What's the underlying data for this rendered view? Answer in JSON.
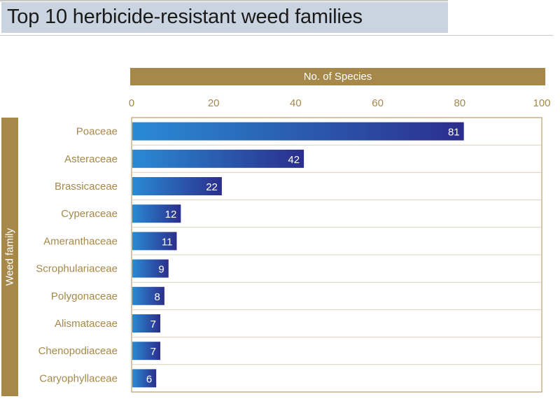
{
  "header": {
    "title": "Top 10 herbicide-resistant weed families"
  },
  "chart_data": {
    "type": "bar",
    "orientation": "horizontal",
    "title": "Top 10 herbicide-resistant weed families",
    "xlabel": "No. of Species",
    "ylabel": "Weed family",
    "xlim": [
      0,
      100
    ],
    "xticks": [
      0,
      20,
      40,
      60,
      80,
      100
    ],
    "categories": [
      "Poaceae",
      "Asteraceae",
      "Brassicaceae",
      "Cyperaceae",
      "Ameranthaceae",
      "Scrophulariaceae",
      "Polygonaceae",
      "Alismataceae",
      "Chenopodiaceae",
      "Caryophyllaceae"
    ],
    "values": [
      81,
      42,
      22,
      12,
      11,
      9,
      8,
      7,
      7,
      6
    ],
    "grid": "horizontal",
    "colors": {
      "bar_start": "#2a8ad4",
      "bar_end": "#2b2e8c",
      "label": "#a5884a",
      "gridline": "#d9d0b8"
    }
  }
}
